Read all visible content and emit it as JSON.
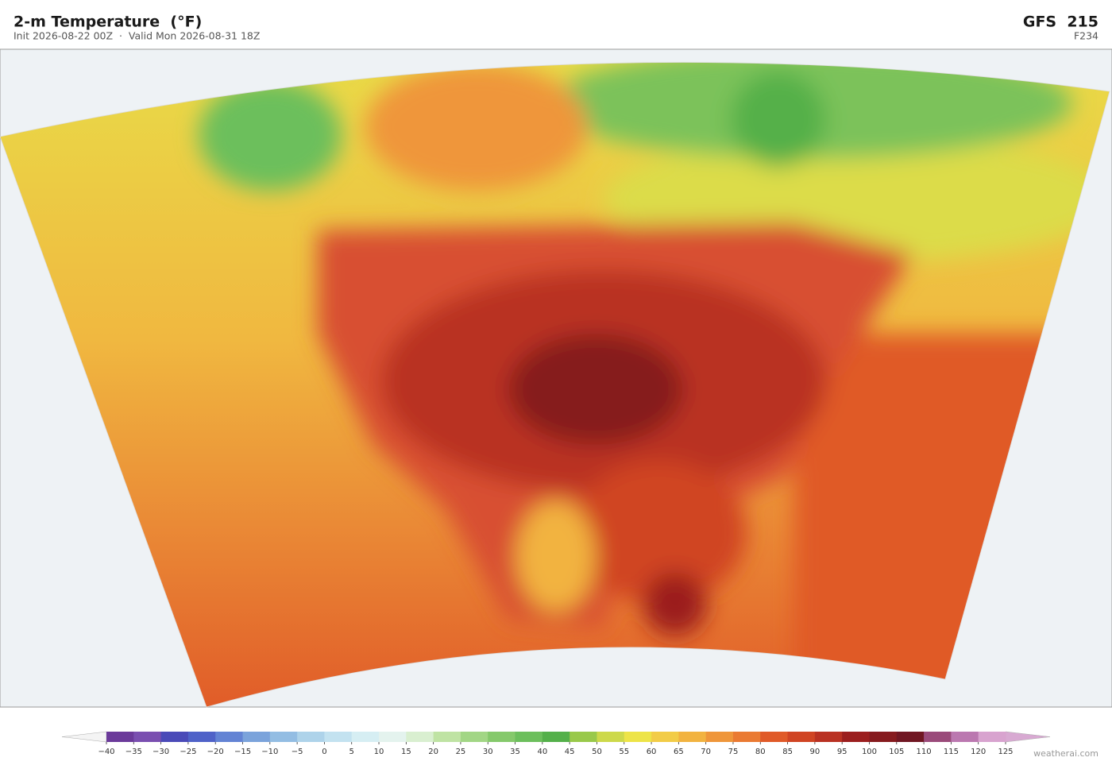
{
  "header": {
    "title": "2-m Temperature  (°F)",
    "subtitle": "Init 2026-08-22 00Z  ·  Valid Mon 2026-08-31 18Z",
    "model": "GFS  215",
    "forecast_hour": "F234"
  },
  "colorbar": {
    "ticks": [
      {
        "value": -40,
        "label": "−40"
      },
      {
        "value": -35,
        "label": "−35"
      },
      {
        "value": -30,
        "label": "−30"
      },
      {
        "value": -25,
        "label": "−25"
      },
      {
        "value": -20,
        "label": "−20"
      },
      {
        "value": -15,
        "label": "−15"
      },
      {
        "value": -10,
        "label": "−10"
      },
      {
        "value": -5,
        "label": "−5"
      },
      0,
      5,
      10,
      15,
      20,
      25,
      30,
      35,
      40,
      45,
      50,
      55,
      60,
      65,
      70,
      75,
      80,
      85,
      90,
      95,
      100,
      105,
      110,
      115,
      120,
      125
    ],
    "colors": [
      "#6b3a9a",
      "#7a4fb0",
      "#4a4ab8",
      "#4f62c8",
      "#6383d4",
      "#7ba3db",
      "#93bde3",
      "#aed3ea",
      "#c3e2f0",
      "#d6eef3",
      "#e4f3ee",
      "#d9efd0",
      "#bfe3a3",
      "#a2d685",
      "#85c96b",
      "#6cbf5c",
      "#54b04a",
      "#99c94a",
      "#cdd94a",
      "#ede447",
      "#f2cc47",
      "#f2b340",
      "#ef963a",
      "#ea7a32",
      "#e05a28",
      "#d04423",
      "#b93122",
      "#9b1e1e",
      "#861a1e",
      "#701622",
      "#9a4a7a",
      "#bb78b0",
      "#d8a3cf"
    ],
    "under_color": "#f4f4f4",
    "over_color": "#d8a9d2"
  },
  "credit": "weatherai.com"
}
